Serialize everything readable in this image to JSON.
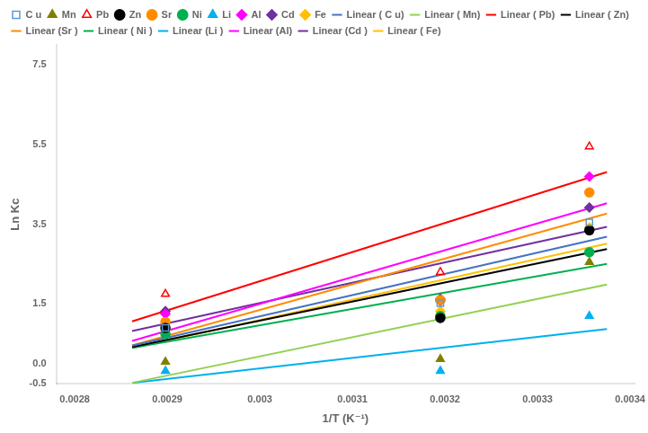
{
  "chart_data": {
    "type": "scatter",
    "xlabel": "1/T (K⁻¹)",
    "ylabel": "Ln Kc",
    "xlim": [
      0.00278,
      0.003405
    ],
    "ylim": [
      -0.5,
      8.0
    ],
    "xticks": [
      0.0028,
      0.0029,
      0.003,
      0.0031,
      0.0032,
      0.0033,
      0.0034
    ],
    "yticks": [
      -0.5,
      {
        "value": 0.0,
        "label": "0.0"
      },
      1.5,
      3.5,
      5.5,
      7.5
    ],
    "grid": false,
    "legend": "upper left",
    "series": [
      {
        "name": "C u",
        "color": "#5B9BD5",
        "marker": "square-open",
        "x": [
          0.002898,
          0.003195,
          0.003356
        ],
        "values": [
          0.9,
          1.52,
          3.55
        ]
      },
      {
        "name": "Mn",
        "color": "#808000",
        "marker": "triangle",
        "x": [
          0.002898,
          0.003195,
          0.003356
        ],
        "values": [
          0.05,
          0.12,
          2.55
        ]
      },
      {
        "name": "Pb",
        "color": "#FF0000",
        "marker": "triangle-open",
        "x": [
          0.002898,
          0.003195,
          0.003356
        ],
        "values": [
          1.75,
          2.3,
          5.45
        ]
      },
      {
        "name": "Zn",
        "color": "#000000",
        "marker": "circle",
        "x": [
          0.002898,
          0.003195,
          0.003356
        ],
        "values": [
          0.9,
          1.15,
          3.35
        ]
      },
      {
        "name": "Sr",
        "color": "#FF8C00",
        "marker": "circle",
        "x": [
          0.002898,
          0.003195,
          0.003356
        ],
        "values": [
          1.05,
          1.6,
          4.3
        ]
      },
      {
        "name": "Ni",
        "color": "#00B050",
        "marker": "circle",
        "x": [
          0.002898,
          0.003195,
          0.003356
        ],
        "values": [
          0.75,
          1.2,
          2.8
        ]
      },
      {
        "name": "Li",
        "color": "#00B0F0",
        "marker": "triangle",
        "x": [
          0.002898,
          0.003195,
          0.003356
        ],
        "values": [
          -0.18,
          -0.18,
          1.2
        ]
      },
      {
        "name": "Al",
        "color": "#FF00FF",
        "marker": "diamond",
        "x": [
          0.002898,
          0.003195,
          0.003356
        ],
        "values": [
          1.25,
          1.58,
          4.7
        ]
      },
      {
        "name": "Cd",
        "color": "#7030A0",
        "marker": "diamond",
        "x": [
          0.002898,
          0.003195,
          0.003356
        ],
        "values": [
          1.32,
          1.63,
          3.92
        ]
      },
      {
        "name": "Fe",
        "color": "#FFC000",
        "marker": "diamond",
        "x": [
          0.002898,
          0.003195,
          0.003356
        ],
        "values": [
          0.85,
          1.32,
          3.42
        ]
      },
      {
        "name": "Linear ( C u)",
        "type": "line",
        "line_style": "solid",
        "color": "#4472C4",
        "x": [
          0.002862,
          0.003375
        ],
        "values": [
          0.4582,
          3.1899
        ]
      },
      {
        "name": "Linear ( Mn)",
        "type": "line",
        "line_style": "solid",
        "color": "#92D050",
        "x": [
          0.002862,
          0.003375
        ],
        "values": [
          -0.4762,
          1.9899
        ]
      },
      {
        "name": "Linear ( Pb)",
        "type": "line",
        "line_style": "solid",
        "color": "#FF0000",
        "x": [
          0.002862,
          0.003375
        ],
        "values": [
          1.0661,
          4.8121
        ]
      },
      {
        "name": "Linear ( Zn)",
        "type": "line",
        "line_style": "solid",
        "color": "#000000",
        "x": [
          0.002862,
          0.003375
        ],
        "values": [
          0.4229,
          2.8787
        ]
      },
      {
        "name": "Linear (Sr )",
        "type": "line",
        "line_style": "solid",
        "color": "#FF8C00",
        "x": [
          0.002862,
          0.003375
        ],
        "values": [
          0.4635,
          3.7683
        ]
      },
      {
        "name": "Linear ( Ni )",
        "type": "line",
        "line_style": "solid",
        "color": "#00B050",
        "x": [
          0.002862,
          0.003375
        ],
        "values": [
          0.402,
          2.5087
        ]
      },
      {
        "name": "Linear (Li )",
        "type": "line",
        "line_style": "solid",
        "color": "#00B0F0",
        "x": [
          0.002862,
          0.003375
        ],
        "values": [
          -0.4787,
          0.8743
        ]
      },
      {
        "name": "Linear (Al)",
        "type": "line",
        "line_style": "solid",
        "color": "#FF00FF",
        "x": [
          0.002862,
          0.003375
        ],
        "values": [
          0.5735,
          4.0269
        ]
      },
      {
        "name": "Linear (Cd )",
        "type": "line",
        "line_style": "solid",
        "color": "#7030A0",
        "x": [
          0.002862,
          0.003375
        ],
        "values": [
          0.8232,
          3.439
        ]
      },
      {
        "name": "Linear ( Fe)",
        "type": "line",
        "line_style": "solid",
        "color": "#FFC000",
        "x": [
          0.002862,
          0.003375
        ],
        "values": [
          0.3937,
          3.0145
        ]
      }
    ]
  }
}
